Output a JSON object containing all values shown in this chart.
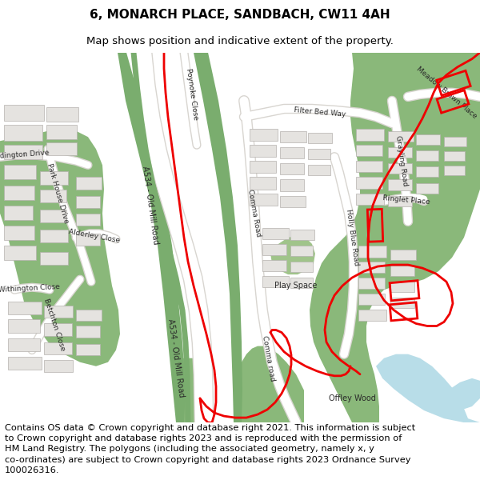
{
  "title_line1": "6, MONARCH PLACE, SANDBACH, CW11 4AH",
  "title_line2": "Map shows position and indicative extent of the property.",
  "footer": "Contains OS data © Crown copyright and database right 2021. This information is subject\nto Crown copyright and database rights 2023 and is reproduced with the permission of\nHM Land Registry. The polygons (including the associated geometry, namely x, y\nco-ordinates) are subject to Crown copyright and database rights 2023 Ordnance Survey\n100026316.",
  "title_fontsize": 11,
  "subtitle_fontsize": 9.5,
  "footer_fontsize": 8.2,
  "bg_color": "#f2f0ed",
  "green_dark": "#8ab87a",
  "green_mid": "#a0c48a",
  "green_canal": "#7aad6e",
  "blue_water": "#b8dde8",
  "red_color": "#ee0000",
  "white": "#ffffff",
  "road_grey": "#d8d5d0",
  "figure_width": 6.0,
  "figure_height": 6.25
}
